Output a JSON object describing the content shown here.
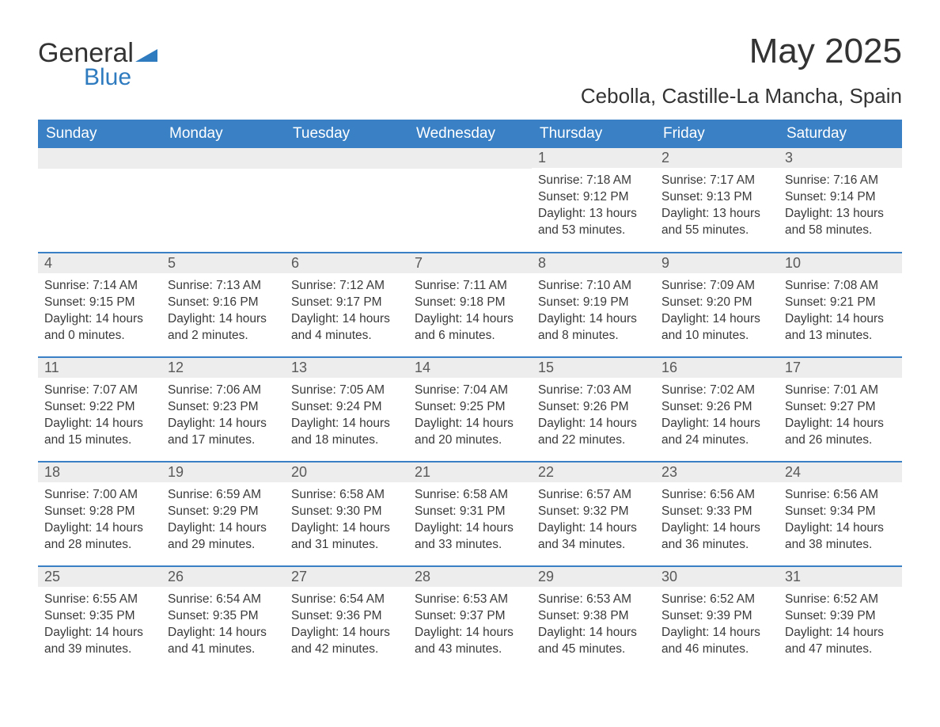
{
  "logo": {
    "general": "General",
    "blue": "Blue"
  },
  "title": "May 2025",
  "location": "Cebolla, Castille-La Mancha, Spain",
  "colors": {
    "header_bg": "#3a80c4",
    "header_text": "#ffffff",
    "daynum_bg": "#ededed",
    "daynum_text": "#595959",
    "body_text": "#3a3a3a",
    "rule": "#3a80c4",
    "logo_blue": "#2f7bbf"
  },
  "day_headers": [
    "Sunday",
    "Monday",
    "Tuesday",
    "Wednesday",
    "Thursday",
    "Friday",
    "Saturday"
  ],
  "weeks": [
    [
      null,
      null,
      null,
      null,
      {
        "n": "1",
        "sr": "7:18 AM",
        "ss": "9:12 PM",
        "dl": "13 hours and 53 minutes."
      },
      {
        "n": "2",
        "sr": "7:17 AM",
        "ss": "9:13 PM",
        "dl": "13 hours and 55 minutes."
      },
      {
        "n": "3",
        "sr": "7:16 AM",
        "ss": "9:14 PM",
        "dl": "13 hours and 58 minutes."
      }
    ],
    [
      {
        "n": "4",
        "sr": "7:14 AM",
        "ss": "9:15 PM",
        "dl": "14 hours and 0 minutes."
      },
      {
        "n": "5",
        "sr": "7:13 AM",
        "ss": "9:16 PM",
        "dl": "14 hours and 2 minutes."
      },
      {
        "n": "6",
        "sr": "7:12 AM",
        "ss": "9:17 PM",
        "dl": "14 hours and 4 minutes."
      },
      {
        "n": "7",
        "sr": "7:11 AM",
        "ss": "9:18 PM",
        "dl": "14 hours and 6 minutes."
      },
      {
        "n": "8",
        "sr": "7:10 AM",
        "ss": "9:19 PM",
        "dl": "14 hours and 8 minutes."
      },
      {
        "n": "9",
        "sr": "7:09 AM",
        "ss": "9:20 PM",
        "dl": "14 hours and 10 minutes."
      },
      {
        "n": "10",
        "sr": "7:08 AM",
        "ss": "9:21 PM",
        "dl": "14 hours and 13 minutes."
      }
    ],
    [
      {
        "n": "11",
        "sr": "7:07 AM",
        "ss": "9:22 PM",
        "dl": "14 hours and 15 minutes."
      },
      {
        "n": "12",
        "sr": "7:06 AM",
        "ss": "9:23 PM",
        "dl": "14 hours and 17 minutes."
      },
      {
        "n": "13",
        "sr": "7:05 AM",
        "ss": "9:24 PM",
        "dl": "14 hours and 18 minutes."
      },
      {
        "n": "14",
        "sr": "7:04 AM",
        "ss": "9:25 PM",
        "dl": "14 hours and 20 minutes."
      },
      {
        "n": "15",
        "sr": "7:03 AM",
        "ss": "9:26 PM",
        "dl": "14 hours and 22 minutes."
      },
      {
        "n": "16",
        "sr": "7:02 AM",
        "ss": "9:26 PM",
        "dl": "14 hours and 24 minutes."
      },
      {
        "n": "17",
        "sr": "7:01 AM",
        "ss": "9:27 PM",
        "dl": "14 hours and 26 minutes."
      }
    ],
    [
      {
        "n": "18",
        "sr": "7:00 AM",
        "ss": "9:28 PM",
        "dl": "14 hours and 28 minutes."
      },
      {
        "n": "19",
        "sr": "6:59 AM",
        "ss": "9:29 PM",
        "dl": "14 hours and 29 minutes."
      },
      {
        "n": "20",
        "sr": "6:58 AM",
        "ss": "9:30 PM",
        "dl": "14 hours and 31 minutes."
      },
      {
        "n": "21",
        "sr": "6:58 AM",
        "ss": "9:31 PM",
        "dl": "14 hours and 33 minutes."
      },
      {
        "n": "22",
        "sr": "6:57 AM",
        "ss": "9:32 PM",
        "dl": "14 hours and 34 minutes."
      },
      {
        "n": "23",
        "sr": "6:56 AM",
        "ss": "9:33 PM",
        "dl": "14 hours and 36 minutes."
      },
      {
        "n": "24",
        "sr": "6:56 AM",
        "ss": "9:34 PM",
        "dl": "14 hours and 38 minutes."
      }
    ],
    [
      {
        "n": "25",
        "sr": "6:55 AM",
        "ss": "9:35 PM",
        "dl": "14 hours and 39 minutes."
      },
      {
        "n": "26",
        "sr": "6:54 AM",
        "ss": "9:35 PM",
        "dl": "14 hours and 41 minutes."
      },
      {
        "n": "27",
        "sr": "6:54 AM",
        "ss": "9:36 PM",
        "dl": "14 hours and 42 minutes."
      },
      {
        "n": "28",
        "sr": "6:53 AM",
        "ss": "9:37 PM",
        "dl": "14 hours and 43 minutes."
      },
      {
        "n": "29",
        "sr": "6:53 AM",
        "ss": "9:38 PM",
        "dl": "14 hours and 45 minutes."
      },
      {
        "n": "30",
        "sr": "6:52 AM",
        "ss": "9:39 PM",
        "dl": "14 hours and 46 minutes."
      },
      {
        "n": "31",
        "sr": "6:52 AM",
        "ss": "9:39 PM",
        "dl": "14 hours and 47 minutes."
      }
    ]
  ],
  "labels": {
    "sunrise": "Sunrise: ",
    "sunset": "Sunset: ",
    "daylight": "Daylight: "
  }
}
